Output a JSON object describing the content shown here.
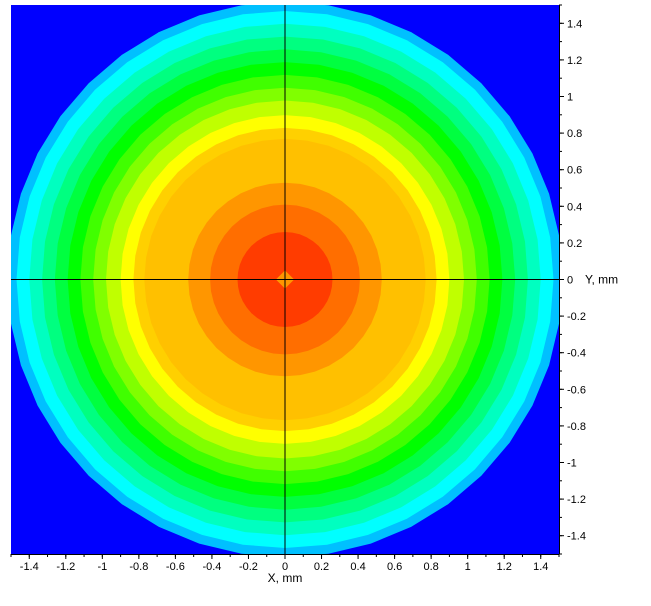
{
  "chart_data": {
    "type": "heatmap",
    "title": "",
    "xlabel": "X, mm",
    "ylabel": "Y, mm",
    "xlim": [
      -1.5,
      1.5
    ],
    "ylim": [
      -1.5,
      1.5
    ],
    "x_ticks": [
      "-1.4",
      "-1.2",
      "-1",
      "-0.8",
      "-0.6",
      "-0.4",
      "-0.2",
      "0",
      "0.2",
      "0.4",
      "0.6",
      "0.8",
      "1",
      "1.2",
      "1.4"
    ],
    "y_ticks": [
      "1.4",
      "1.2",
      "1",
      "0.8",
      "0.6",
      "0.4",
      "0.2",
      "0",
      "-0.2",
      "-0.4",
      "-0.6",
      "-0.8",
      "-1",
      "-1.2",
      "-1.4"
    ],
    "crosshair": {
      "x": 0,
      "y": 0
    },
    "background_color": "#0000ff",
    "contour_levels": [
      {
        "radius": 1.52,
        "color": "#00c0ff"
      },
      {
        "radius": 1.47,
        "color": "#00ffff"
      },
      {
        "radius": 1.4,
        "color": "#00ffc0"
      },
      {
        "radius": 1.33,
        "color": "#00ff80"
      },
      {
        "radius": 1.26,
        "color": "#00ff40"
      },
      {
        "radius": 1.19,
        "color": "#00ff00"
      },
      {
        "radius": 1.12,
        "color": "#40ff00"
      },
      {
        "radius": 1.05,
        "color": "#80ff00"
      },
      {
        "radius": 0.98,
        "color": "#c0ff00"
      },
      {
        "radius": 0.9,
        "color": "#ffff00"
      },
      {
        "radius": 0.83,
        "color": "#ffd000"
      },
      {
        "radius": 0.77,
        "color": "#ffc000"
      },
      {
        "radius": 0.53,
        "color": "#ff9600"
      },
      {
        "radius": 0.41,
        "color": "#ff6e00"
      },
      {
        "radius": 0.26,
        "color": "#ff3c00"
      },
      {
        "radius": 0.05,
        "color": "#ff9600"
      }
    ]
  }
}
